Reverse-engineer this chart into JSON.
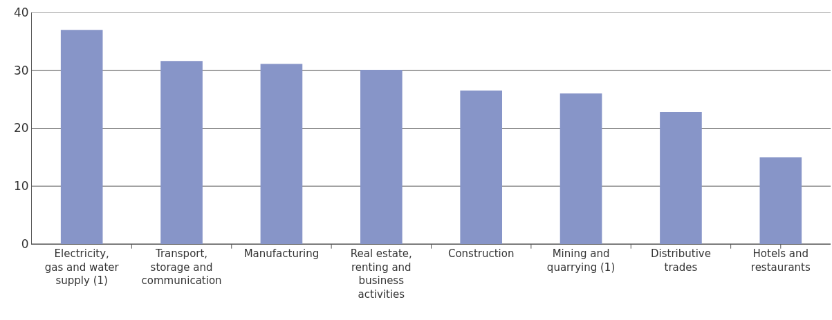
{
  "chart_data": {
    "type": "bar",
    "categories": [
      "Electricity, gas and water supply (1)",
      "Transport, storage and communication",
      "Manufacturing",
      "Real estate, renting and business activities",
      "Construction",
      "Mining and quarrying (1)",
      "Distributive trades",
      "Hotels and restaurants"
    ],
    "values": [
      37.0,
      31.6,
      31.1,
      30.1,
      26.5,
      26.0,
      22.8,
      15.0
    ],
    "color": "#8795c8",
    "ylim": [
      0,
      40
    ],
    "yticks": [
      0,
      10,
      20,
      30,
      40
    ],
    "grid": "y"
  }
}
